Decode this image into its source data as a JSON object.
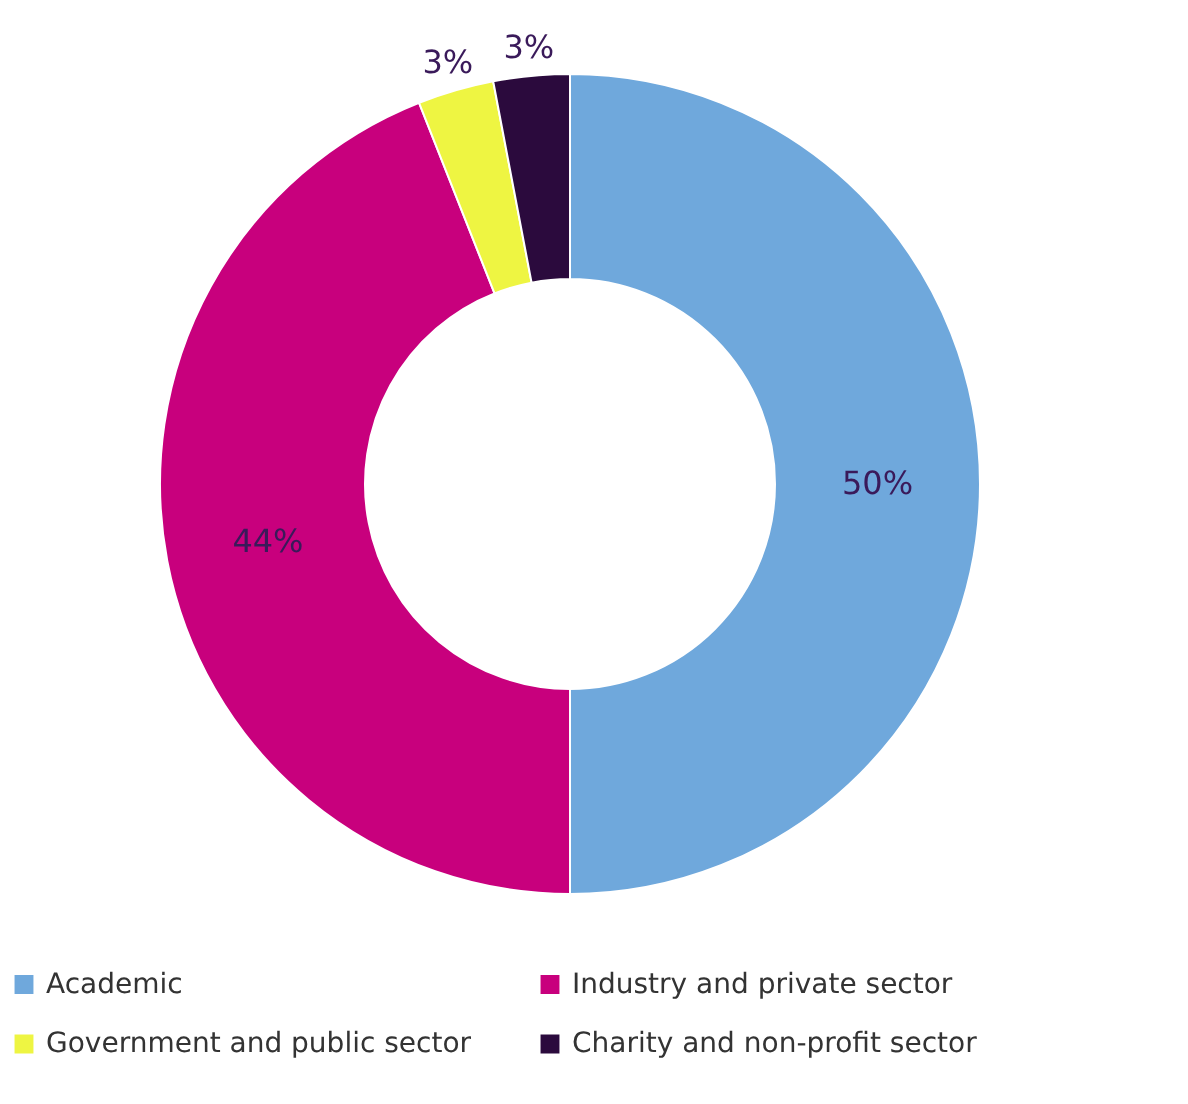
{
  "chart_data": {
    "type": "donut",
    "categories": [
      "Academic",
      "Industry and private sector",
      "Government and public sector",
      "Charity and non-profit sector"
    ],
    "values": [
      50,
      44,
      3,
      3
    ],
    "colors": [
      "#6fa8dc",
      "#c8007d",
      "#eef542",
      "#2b0a3d"
    ],
    "value_labels": [
      "50%",
      "44%",
      "3%",
      "3%"
    ],
    "legend": "bottom"
  }
}
